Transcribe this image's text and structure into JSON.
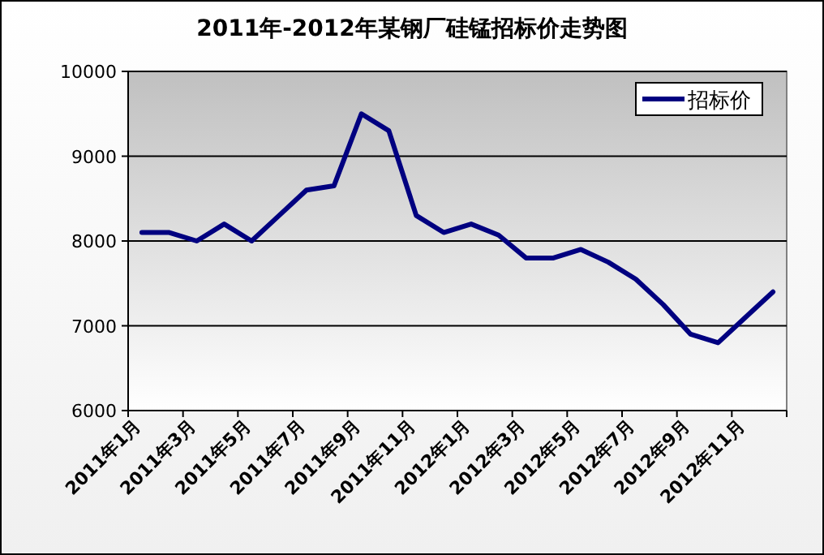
{
  "chart_data": {
    "type": "line",
    "title": "2011年-2012年某钢厂硅锰招标价走势图",
    "categories": [
      "2011年1月",
      null,
      "2011年3月",
      null,
      "2011年5月",
      null,
      "2011年7月",
      null,
      "2011年9月",
      null,
      "2011年11月",
      null,
      "2012年1月",
      null,
      "2012年3月",
      null,
      "2012年5月",
      null,
      "2012年7月",
      null,
      "2012年9月",
      null,
      "2012年11月",
      null
    ],
    "series": [
      {
        "name": "招标价",
        "color": "#000080",
        "values": [
          8100,
          8100,
          8000,
          8200,
          8000,
          8300,
          8600,
          8650,
          9500,
          9300,
          8300,
          8100,
          8200,
          8070,
          7800,
          7800,
          7900,
          7750,
          7550,
          7250,
          6900,
          6800,
          7100,
          7400
        ]
      }
    ],
    "ylim": [
      6000,
      10000
    ],
    "yticks": [
      6000,
      7000,
      8000,
      9000,
      10000
    ],
    "grid": "y",
    "legend": "top right",
    "marker": "none",
    "line_style": "solid"
  }
}
